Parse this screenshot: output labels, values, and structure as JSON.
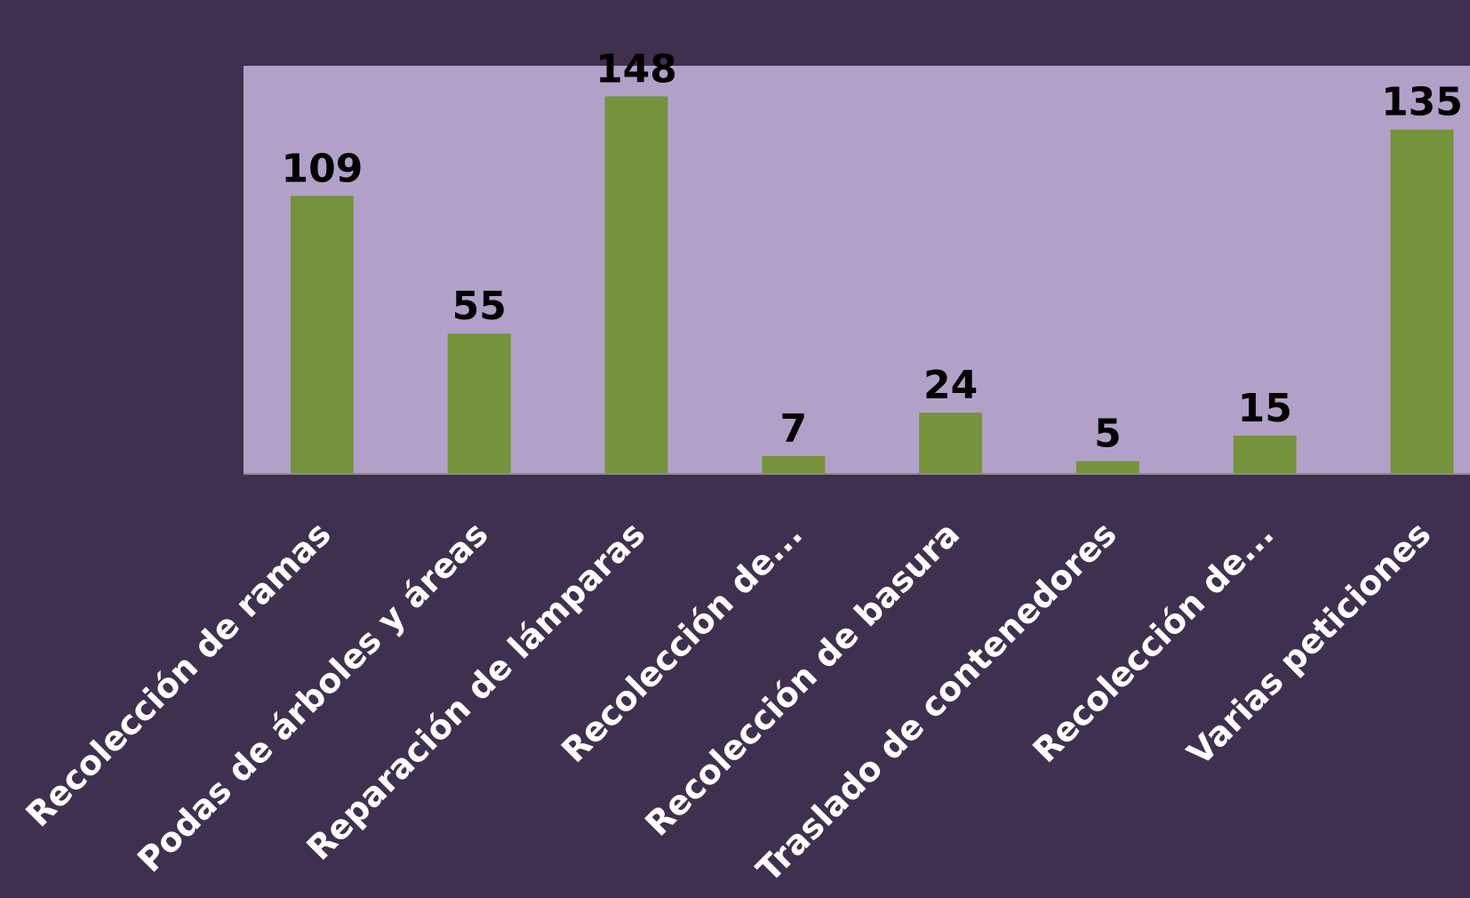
{
  "chart_data": {
    "type": "bar",
    "categories": [
      "Recolección de ramas",
      "Podas de árboles y áreas",
      "Reparación de lámparas",
      "Recolección de...",
      "Recolección de basura",
      "Traslado de contenedores",
      "Recolección de...",
      "Varias peticiones"
    ],
    "values": [
      109,
      55,
      148,
      7,
      24,
      5,
      15,
      135
    ],
    "color": "#76923c",
    "ylim": [
      0,
      160
    ]
  }
}
